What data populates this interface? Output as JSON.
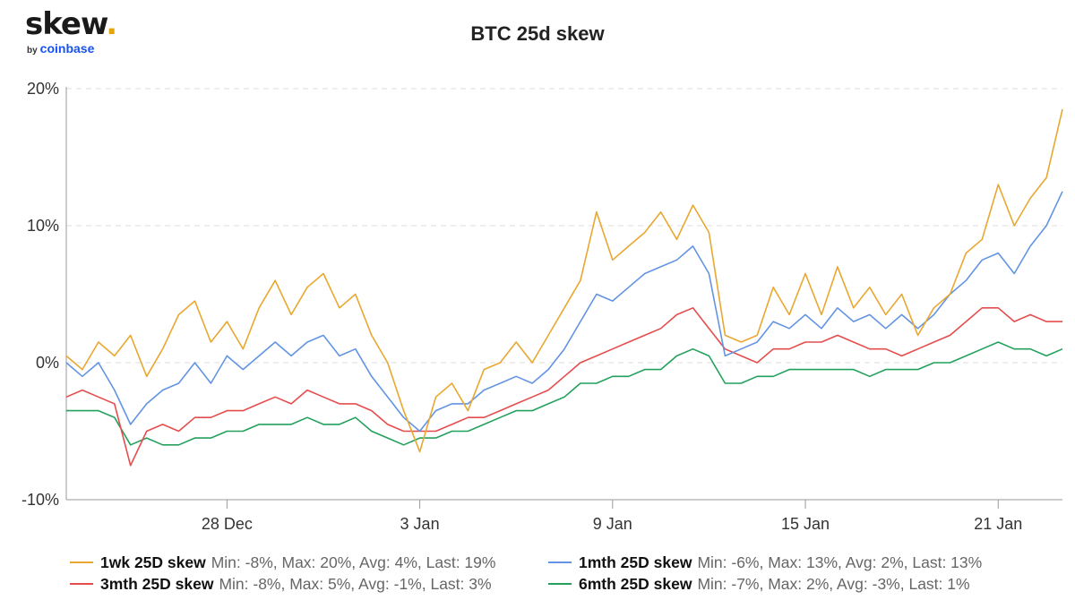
{
  "logo": {
    "word": "skew",
    "dot": ".",
    "by": "by",
    "brand": "coinbase"
  },
  "chart_data": {
    "type": "line",
    "title": "BTC 25d skew",
    "xlabel": "",
    "ylabel": "",
    "x_range": [
      "2020-12-23",
      "2021-01-23"
    ],
    "x_ticks": [
      {
        "date": "2020-12-28",
        "label": "28 Dec"
      },
      {
        "date": "2021-01-03",
        "label": "3 Jan"
      },
      {
        "date": "2021-01-09",
        "label": "9 Jan"
      },
      {
        "date": "2021-01-15",
        "label": "15 Jan"
      },
      {
        "date": "2021-01-21",
        "label": "21 Jan"
      }
    ],
    "ylim": [
      -10,
      20
    ],
    "y_ticks": [
      {
        "value": 20,
        "label": "20%"
      },
      {
        "value": 10,
        "label": "10%"
      },
      {
        "value": 0,
        "label": "0%"
      },
      {
        "value": -10,
        "label": "-10%"
      }
    ],
    "grid": "horizontal dashed",
    "legend_placement": "bottom",
    "series": [
      {
        "name": "1wk 25D skew",
        "color": "#e8a830",
        "stats": "Min: -8%, Max: 20%, Avg: 4%, Last: 19%",
        "points": [
          [
            "2020-12-23T00:00",
            0.5
          ],
          [
            "2020-12-23T12:00",
            -0.5
          ],
          [
            "2020-12-24T00:00",
            1.5
          ],
          [
            "2020-12-24T12:00",
            0.5
          ],
          [
            "2020-12-25T00:00",
            2
          ],
          [
            "2020-12-25T12:00",
            -1
          ],
          [
            "2020-12-26T00:00",
            1
          ],
          [
            "2020-12-26T12:00",
            3.5
          ],
          [
            "2020-12-27T00:00",
            4.5
          ],
          [
            "2020-12-27T12:00",
            1.5
          ],
          [
            "2020-12-28T00:00",
            3
          ],
          [
            "2020-12-28T12:00",
            1
          ],
          [
            "2020-12-29T00:00",
            4
          ],
          [
            "2020-12-29T12:00",
            6
          ],
          [
            "2020-12-30T00:00",
            3.5
          ],
          [
            "2020-12-30T12:00",
            5.5
          ],
          [
            "2020-12-31T00:00",
            6.5
          ],
          [
            "2020-12-31T12:00",
            4
          ],
          [
            "2021-01-01T00:00",
            5
          ],
          [
            "2021-01-01T12:00",
            2
          ],
          [
            "2021-01-02T00:00",
            0
          ],
          [
            "2021-01-02T12:00",
            -3.5
          ],
          [
            "2021-01-03T00:00",
            -6.5
          ],
          [
            "2021-01-03T12:00",
            -2.5
          ],
          [
            "2021-01-04T00:00",
            -1.5
          ],
          [
            "2021-01-04T12:00",
            -3.5
          ],
          [
            "2021-01-05T00:00",
            -0.5
          ],
          [
            "2021-01-05T12:00",
            0
          ],
          [
            "2021-01-06T00:00",
            1.5
          ],
          [
            "2021-01-06T12:00",
            0
          ],
          [
            "2021-01-07T00:00",
            2
          ],
          [
            "2021-01-07T12:00",
            4
          ],
          [
            "2021-01-08T00:00",
            6
          ],
          [
            "2021-01-08T12:00",
            11
          ],
          [
            "2021-01-09T00:00",
            7.5
          ],
          [
            "2021-01-09T12:00",
            8.5
          ],
          [
            "2021-01-10T00:00",
            9.5
          ],
          [
            "2021-01-10T12:00",
            11
          ],
          [
            "2021-01-11T00:00",
            9
          ],
          [
            "2021-01-11T12:00",
            11.5
          ],
          [
            "2021-01-12T00:00",
            9.5
          ],
          [
            "2021-01-12T12:00",
            2
          ],
          [
            "2021-01-13T00:00",
            1.5
          ],
          [
            "2021-01-13T12:00",
            2
          ],
          [
            "2021-01-14T00:00",
            5.5
          ],
          [
            "2021-01-14T12:00",
            3.5
          ],
          [
            "2021-01-15T00:00",
            6.5
          ],
          [
            "2021-01-15T12:00",
            3.5
          ],
          [
            "2021-01-16T00:00",
            7
          ],
          [
            "2021-01-16T12:00",
            4
          ],
          [
            "2021-01-17T00:00",
            5.5
          ],
          [
            "2021-01-17T12:00",
            3.5
          ],
          [
            "2021-01-18T00:00",
            5
          ],
          [
            "2021-01-18T12:00",
            2
          ],
          [
            "2021-01-19T00:00",
            4
          ],
          [
            "2021-01-19T12:00",
            5
          ],
          [
            "2021-01-20T00:00",
            8
          ],
          [
            "2021-01-20T12:00",
            9
          ],
          [
            "2021-01-21T00:00",
            13
          ],
          [
            "2021-01-21T12:00",
            10
          ],
          [
            "2021-01-22T00:00",
            12
          ],
          [
            "2021-01-22T12:00",
            13.5
          ],
          [
            "2021-01-23T00:00",
            18.5
          ]
        ]
      },
      {
        "name": "1mth 25D skew",
        "color": "#6394e3",
        "stats": "Min: -6%, Max: 13%, Avg: 2%, Last: 13%",
        "points": [
          [
            "2020-12-23T00:00",
            0
          ],
          [
            "2020-12-23T12:00",
            -1
          ],
          [
            "2020-12-24T00:00",
            0
          ],
          [
            "2020-12-24T12:00",
            -2
          ],
          [
            "2020-12-25T00:00",
            -4.5
          ],
          [
            "2020-12-25T12:00",
            -3
          ],
          [
            "2020-12-26T00:00",
            -2
          ],
          [
            "2020-12-26T12:00",
            -1.5
          ],
          [
            "2020-12-27T00:00",
            0
          ],
          [
            "2020-12-27T12:00",
            -1.5
          ],
          [
            "2020-12-28T00:00",
            0.5
          ],
          [
            "2020-12-28T12:00",
            -0.5
          ],
          [
            "2020-12-29T00:00",
            0.5
          ],
          [
            "2020-12-29T12:00",
            1.5
          ],
          [
            "2020-12-30T00:00",
            0.5
          ],
          [
            "2020-12-30T12:00",
            1.5
          ],
          [
            "2020-12-31T00:00",
            2
          ],
          [
            "2020-12-31T12:00",
            0.5
          ],
          [
            "2021-01-01T00:00",
            1
          ],
          [
            "2021-01-01T12:00",
            -1
          ],
          [
            "2021-01-02T00:00",
            -2.5
          ],
          [
            "2021-01-02T12:00",
            -4
          ],
          [
            "2021-01-03T00:00",
            -5
          ],
          [
            "2021-01-03T12:00",
            -3.5
          ],
          [
            "2021-01-04T00:00",
            -3
          ],
          [
            "2021-01-04T12:00",
            -3
          ],
          [
            "2021-01-05T00:00",
            -2
          ],
          [
            "2021-01-05T12:00",
            -1.5
          ],
          [
            "2021-01-06T00:00",
            -1
          ],
          [
            "2021-01-06T12:00",
            -1.5
          ],
          [
            "2021-01-07T00:00",
            -0.5
          ],
          [
            "2021-01-07T12:00",
            1
          ],
          [
            "2021-01-08T00:00",
            3
          ],
          [
            "2021-01-08T12:00",
            5
          ],
          [
            "2021-01-09T00:00",
            4.5
          ],
          [
            "2021-01-09T12:00",
            5.5
          ],
          [
            "2021-01-10T00:00",
            6.5
          ],
          [
            "2021-01-10T12:00",
            7
          ],
          [
            "2021-01-11T00:00",
            7.5
          ],
          [
            "2021-01-11T12:00",
            8.5
          ],
          [
            "2021-01-12T00:00",
            6.5
          ],
          [
            "2021-01-12T12:00",
            0.5
          ],
          [
            "2021-01-13T00:00",
            1
          ],
          [
            "2021-01-13T12:00",
            1.5
          ],
          [
            "2021-01-14T00:00",
            3
          ],
          [
            "2021-01-14T12:00",
            2.5
          ],
          [
            "2021-01-15T00:00",
            3.5
          ],
          [
            "2021-01-15T12:00",
            2.5
          ],
          [
            "2021-01-16T00:00",
            4
          ],
          [
            "2021-01-16T12:00",
            3
          ],
          [
            "2021-01-17T00:00",
            3.5
          ],
          [
            "2021-01-17T12:00",
            2.5
          ],
          [
            "2021-01-18T00:00",
            3.5
          ],
          [
            "2021-01-18T12:00",
            2.5
          ],
          [
            "2021-01-19T00:00",
            3.5
          ],
          [
            "2021-01-19T12:00",
            5
          ],
          [
            "2021-01-20T00:00",
            6
          ],
          [
            "2021-01-20T12:00",
            7.5
          ],
          [
            "2021-01-21T00:00",
            8
          ],
          [
            "2021-01-21T12:00",
            6.5
          ],
          [
            "2021-01-22T00:00",
            8.5
          ],
          [
            "2021-01-22T12:00",
            10
          ],
          [
            "2021-01-23T00:00",
            12.5
          ]
        ]
      },
      {
        "name": "3mth 25D skew",
        "color": "#e54d4d",
        "stats": "Min: -8%, Max: 5%, Avg: -1%, Last: 3%",
        "points": [
          [
            "2020-12-23T00:00",
            -2.5
          ],
          [
            "2020-12-23T12:00",
            -2
          ],
          [
            "2020-12-24T00:00",
            -2.5
          ],
          [
            "2020-12-24T12:00",
            -3
          ],
          [
            "2020-12-25T00:00",
            -7.5
          ],
          [
            "2020-12-25T12:00",
            -5
          ],
          [
            "2020-12-26T00:00",
            -4.5
          ],
          [
            "2020-12-26T12:00",
            -5
          ],
          [
            "2020-12-27T00:00",
            -4
          ],
          [
            "2020-12-27T12:00",
            -4
          ],
          [
            "2020-12-28T00:00",
            -3.5
          ],
          [
            "2020-12-28T12:00",
            -3.5
          ],
          [
            "2020-12-29T00:00",
            -3
          ],
          [
            "2020-12-29T12:00",
            -2.5
          ],
          [
            "2020-12-30T00:00",
            -3
          ],
          [
            "2020-12-30T12:00",
            -2
          ],
          [
            "2020-12-31T00:00",
            -2.5
          ],
          [
            "2020-12-31T12:00",
            -3
          ],
          [
            "2021-01-01T00:00",
            -3
          ],
          [
            "2021-01-01T12:00",
            -3.5
          ],
          [
            "2021-01-02T00:00",
            -4.5
          ],
          [
            "2021-01-02T12:00",
            -5
          ],
          [
            "2021-01-03T00:00",
            -5
          ],
          [
            "2021-01-03T12:00",
            -5
          ],
          [
            "2021-01-04T00:00",
            -4.5
          ],
          [
            "2021-01-04T12:00",
            -4
          ],
          [
            "2021-01-05T00:00",
            -4
          ],
          [
            "2021-01-05T12:00",
            -3.5
          ],
          [
            "2021-01-06T00:00",
            -3
          ],
          [
            "2021-01-06T12:00",
            -2.5
          ],
          [
            "2021-01-07T00:00",
            -2
          ],
          [
            "2021-01-07T12:00",
            -1
          ],
          [
            "2021-01-08T00:00",
            0
          ],
          [
            "2021-01-08T12:00",
            0.5
          ],
          [
            "2021-01-09T00:00",
            1
          ],
          [
            "2021-01-09T12:00",
            1.5
          ],
          [
            "2021-01-10T00:00",
            2
          ],
          [
            "2021-01-10T12:00",
            2.5
          ],
          [
            "2021-01-11T00:00",
            3.5
          ],
          [
            "2021-01-11T12:00",
            4
          ],
          [
            "2021-01-12T00:00",
            2.5
          ],
          [
            "2021-01-12T12:00",
            1
          ],
          [
            "2021-01-13T00:00",
            0.5
          ],
          [
            "2021-01-13T12:00",
            0
          ],
          [
            "2021-01-14T00:00",
            1
          ],
          [
            "2021-01-14T12:00",
            1
          ],
          [
            "2021-01-15T00:00",
            1.5
          ],
          [
            "2021-01-15T12:00",
            1.5
          ],
          [
            "2021-01-16T00:00",
            2
          ],
          [
            "2021-01-16T12:00",
            1.5
          ],
          [
            "2021-01-17T00:00",
            1
          ],
          [
            "2021-01-17T12:00",
            1
          ],
          [
            "2021-01-18T00:00",
            0.5
          ],
          [
            "2021-01-18T12:00",
            1
          ],
          [
            "2021-01-19T00:00",
            1.5
          ],
          [
            "2021-01-19T12:00",
            2
          ],
          [
            "2021-01-20T00:00",
            3
          ],
          [
            "2021-01-20T12:00",
            4
          ],
          [
            "2021-01-21T00:00",
            4
          ],
          [
            "2021-01-21T12:00",
            3
          ],
          [
            "2021-01-22T00:00",
            3.5
          ],
          [
            "2021-01-22T12:00",
            3
          ],
          [
            "2021-01-23T00:00",
            3
          ]
        ]
      },
      {
        "name": "6mth 25D skew",
        "color": "#23a15c",
        "stats": "Min: -7%, Max: 2%, Avg: -3%, Last: 1%",
        "points": [
          [
            "2020-12-23T00:00",
            -3.5
          ],
          [
            "2020-12-23T12:00",
            -3.5
          ],
          [
            "2020-12-24T00:00",
            -3.5
          ],
          [
            "2020-12-24T12:00",
            -4
          ],
          [
            "2020-12-25T00:00",
            -6
          ],
          [
            "2020-12-25T12:00",
            -5.5
          ],
          [
            "2020-12-26T00:00",
            -6
          ],
          [
            "2020-12-26T12:00",
            -6
          ],
          [
            "2020-12-27T00:00",
            -5.5
          ],
          [
            "2020-12-27T12:00",
            -5.5
          ],
          [
            "2020-12-28T00:00",
            -5
          ],
          [
            "2020-12-28T12:00",
            -5
          ],
          [
            "2020-12-29T00:00",
            -4.5
          ],
          [
            "2020-12-29T12:00",
            -4.5
          ],
          [
            "2020-12-30T00:00",
            -4.5
          ],
          [
            "2020-12-30T12:00",
            -4
          ],
          [
            "2020-12-31T00:00",
            -4.5
          ],
          [
            "2020-12-31T12:00",
            -4.5
          ],
          [
            "2021-01-01T00:00",
            -4
          ],
          [
            "2021-01-01T12:00",
            -5
          ],
          [
            "2021-01-02T00:00",
            -5.5
          ],
          [
            "2021-01-02T12:00",
            -6
          ],
          [
            "2021-01-03T00:00",
            -5.5
          ],
          [
            "2021-01-03T12:00",
            -5.5
          ],
          [
            "2021-01-04T00:00",
            -5
          ],
          [
            "2021-01-04T12:00",
            -5
          ],
          [
            "2021-01-05T00:00",
            -4.5
          ],
          [
            "2021-01-05T12:00",
            -4
          ],
          [
            "2021-01-06T00:00",
            -3.5
          ],
          [
            "2021-01-06T12:00",
            -3.5
          ],
          [
            "2021-01-07T00:00",
            -3
          ],
          [
            "2021-01-07T12:00",
            -2.5
          ],
          [
            "2021-01-08T00:00",
            -1.5
          ],
          [
            "2021-01-08T12:00",
            -1.5
          ],
          [
            "2021-01-09T00:00",
            -1
          ],
          [
            "2021-01-09T12:00",
            -1
          ],
          [
            "2021-01-10T00:00",
            -0.5
          ],
          [
            "2021-01-10T12:00",
            -0.5
          ],
          [
            "2021-01-11T00:00",
            0.5
          ],
          [
            "2021-01-11T12:00",
            1
          ],
          [
            "2021-01-12T00:00",
            0.5
          ],
          [
            "2021-01-12T12:00",
            -1.5
          ],
          [
            "2021-01-13T00:00",
            -1.5
          ],
          [
            "2021-01-13T12:00",
            -1
          ],
          [
            "2021-01-14T00:00",
            -1
          ],
          [
            "2021-01-14T12:00",
            -0.5
          ],
          [
            "2021-01-15T00:00",
            -0.5
          ],
          [
            "2021-01-15T12:00",
            -0.5
          ],
          [
            "2021-01-16T00:00",
            -0.5
          ],
          [
            "2021-01-16T12:00",
            -0.5
          ],
          [
            "2021-01-17T00:00",
            -1
          ],
          [
            "2021-01-17T12:00",
            -0.5
          ],
          [
            "2021-01-18T00:00",
            -0.5
          ],
          [
            "2021-01-18T12:00",
            -0.5
          ],
          [
            "2021-01-19T00:00",
            0
          ],
          [
            "2021-01-19T12:00",
            0
          ],
          [
            "2021-01-20T00:00",
            0.5
          ],
          [
            "2021-01-20T12:00",
            1
          ],
          [
            "2021-01-21T00:00",
            1.5
          ],
          [
            "2021-01-21T12:00",
            1
          ],
          [
            "2021-01-22T00:00",
            1
          ],
          [
            "2021-01-22T12:00",
            0.5
          ],
          [
            "2021-01-23T00:00",
            1
          ]
        ]
      }
    ]
  }
}
